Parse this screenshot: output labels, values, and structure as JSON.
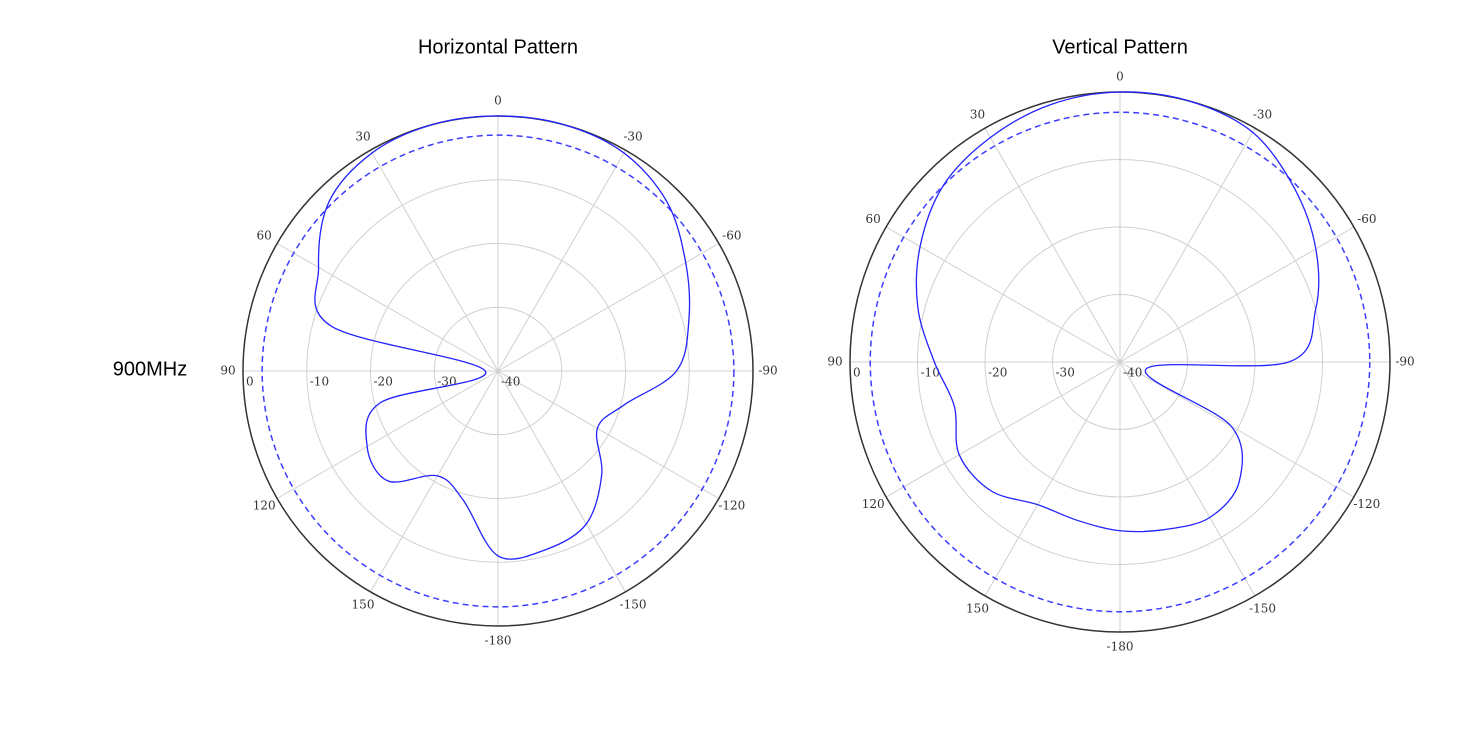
{
  "row_label": "900MHz",
  "chart_data": [
    {
      "type": "polar",
      "title": "Horizontal Pattern",
      "theta": [
        -180,
        -165,
        -150,
        -135,
        -120,
        -105,
        -90,
        -75,
        -60,
        -45,
        -30,
        -15,
        0,
        15,
        30,
        45,
        60,
        75,
        90,
        105,
        120,
        135,
        150,
        165
      ],
      "values": [
        -11,
        -11,
        -12.3,
        -17,
        -22,
        -19.5,
        -12,
        -9,
        -6,
        -2.5,
        -0.5,
        0,
        0,
        0,
        -0.5,
        -2.5,
        -7.5,
        -13,
        -38,
        -21,
        -16.3,
        -15.6,
        -21,
        -19
      ],
      "color": "#2323ff",
      "rlim": [
        -40,
        0
      ],
      "rticks": [
        0,
        -10,
        -20,
        -30,
        -40
      ],
      "thetaticks": [
        0,
        30,
        60,
        90,
        120,
        150,
        -180,
        -150,
        -120,
        -90,
        -60,
        -30
      ],
      "reference_circle": -3,
      "reference_color": "#3d3dff",
      "grid": true
    },
    {
      "type": "polar",
      "title": "Vertical Pattern",
      "theta": [
        -180,
        -165,
        -150,
        -135,
        -120,
        -105,
        -90,
        -75,
        -60,
        -45,
        -30,
        -15,
        0,
        15,
        30,
        45,
        60,
        75,
        90,
        105,
        120,
        135,
        150,
        165
      ],
      "values": [
        -15,
        -14.3,
        -13.4,
        -15,
        -21,
        -36,
        -15,
        -10,
        -6.5,
        -3.5,
        -0.7,
        0,
        0,
        -0.5,
        -1.6,
        -3,
        -5.8,
        -9,
        -12.5,
        -14.6,
        -12.5,
        -13,
        -15.6,
        -15.7
      ],
      "color": "#2323ff",
      "rlim": [
        -40,
        0
      ],
      "rticks": [
        0,
        -10,
        -20,
        -30,
        -40
      ],
      "thetaticks": [
        0,
        30,
        60,
        90,
        120,
        150,
        -180,
        -150,
        -120,
        -90,
        -60,
        -30
      ],
      "reference_circle": -3,
      "reference_color": "#3d3dff",
      "grid": true
    }
  ]
}
